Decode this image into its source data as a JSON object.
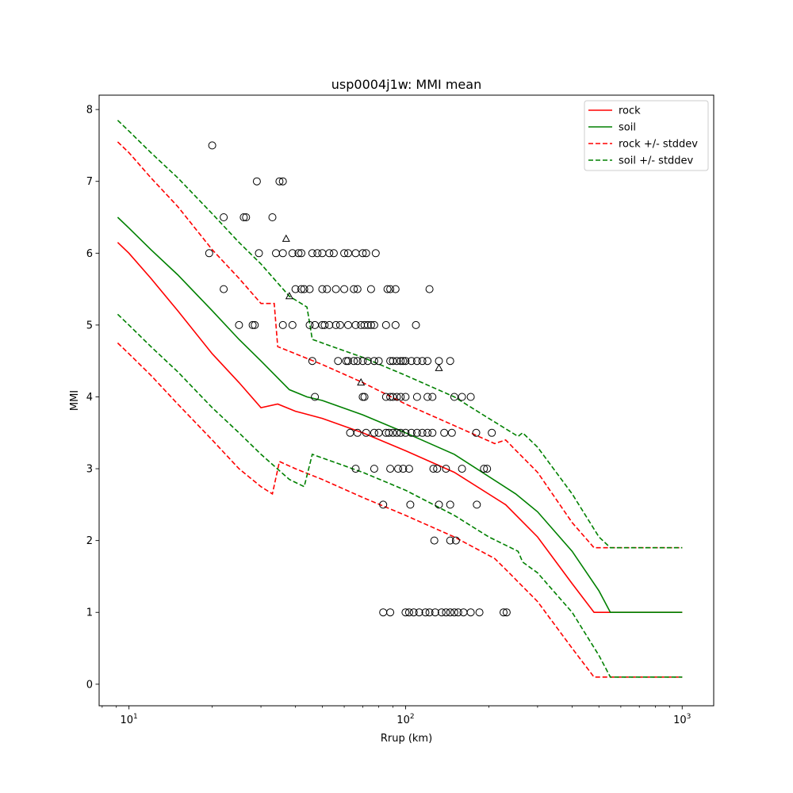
{
  "chart_data": {
    "type": "scatter",
    "title": "usp0004j1w: MMI mean",
    "xlabel": "Rrup (km)",
    "ylabel": "MMI",
    "xscale": "log",
    "xlim": [
      7.8,
      1300
    ],
    "ylim": [
      -0.3,
      8.2
    ],
    "xticks": [
      {
        "value": 10,
        "base": "10",
        "exp": "1"
      },
      {
        "value": 100,
        "base": "10",
        "exp": "2"
      },
      {
        "value": 1000,
        "base": "10",
        "exp": "3"
      }
    ],
    "yticks": [
      0,
      1,
      2,
      3,
      4,
      5,
      6,
      7,
      8
    ],
    "legend_position": "top-right",
    "colors": {
      "rock": "#ff0000",
      "soil": "#008000",
      "axis": "#000000"
    },
    "series": [
      {
        "name": "rock",
        "label": "rock",
        "color": "#ff0000",
        "dash": false,
        "legend": true,
        "x": [
          9.1,
          10,
          12,
          15,
          20,
          25,
          30,
          34.5,
          40,
          50,
          70,
          100,
          150,
          230,
          300,
          400,
          480,
          1000
        ],
        "y": [
          6.15,
          6.0,
          5.65,
          5.2,
          4.6,
          4.2,
          3.85,
          3.9,
          3.8,
          3.7,
          3.5,
          3.25,
          2.95,
          2.5,
          2.05,
          1.4,
          1.0,
          1.0
        ]
      },
      {
        "name": "soil",
        "label": "soil",
        "color": "#008000",
        "dash": false,
        "legend": true,
        "x": [
          9.1,
          10,
          12,
          15,
          20,
          25,
          30,
          38,
          44,
          50,
          70,
          100,
          150,
          250,
          300,
          400,
          500,
          550,
          1000
        ],
        "y": [
          6.5,
          6.35,
          6.05,
          5.7,
          5.2,
          4.8,
          4.5,
          4.1,
          4.0,
          3.95,
          3.75,
          3.5,
          3.2,
          2.65,
          2.4,
          1.85,
          1.3,
          1.0,
          1.0
        ]
      },
      {
        "name": "rock-plus",
        "label": "rock +/- stddev",
        "color": "#ff0000",
        "dash": true,
        "legend": true,
        "x": [
          9.1,
          10,
          12,
          15,
          20,
          25,
          30,
          33.5,
          34.5,
          40,
          50,
          70,
          100,
          150,
          210,
          230,
          300,
          400,
          480,
          1000
        ],
        "y": [
          7.55,
          7.4,
          7.05,
          6.65,
          6.05,
          5.65,
          5.3,
          5.3,
          4.7,
          4.6,
          4.45,
          4.2,
          3.9,
          3.6,
          3.35,
          3.4,
          2.95,
          2.25,
          1.9,
          1.9
        ]
      },
      {
        "name": "rock-minus",
        "label": "",
        "color": "#ff0000",
        "dash": true,
        "legend": false,
        "x": [
          9.1,
          10,
          12,
          15,
          20,
          25,
          30,
          33,
          35,
          40,
          50,
          70,
          100,
          150,
          210,
          230,
          300,
          400,
          480,
          1000
        ],
        "y": [
          4.75,
          4.6,
          4.3,
          3.9,
          3.4,
          3.0,
          2.75,
          2.65,
          3.1,
          3.0,
          2.85,
          2.6,
          2.35,
          2.05,
          1.75,
          1.6,
          1.15,
          0.5,
          0.1,
          0.1
        ]
      },
      {
        "name": "soil-plus",
        "label": "soil +/- stddev",
        "color": "#008000",
        "dash": true,
        "legend": true,
        "x": [
          9.1,
          10,
          12,
          15,
          20,
          25,
          30,
          38,
          44,
          46,
          50,
          70,
          100,
          150,
          200,
          255,
          265,
          300,
          400,
          500,
          550,
          1000
        ],
        "y": [
          7.85,
          7.7,
          7.4,
          7.05,
          6.55,
          6.15,
          5.85,
          5.4,
          5.25,
          4.8,
          4.75,
          4.55,
          4.3,
          4.0,
          3.7,
          3.45,
          3.5,
          3.3,
          2.65,
          2.05,
          1.9,
          1.9
        ]
      },
      {
        "name": "soil-minus",
        "label": "",
        "color": "#008000",
        "dash": true,
        "legend": false,
        "x": [
          9.1,
          10,
          12,
          15,
          20,
          25,
          30,
          38,
          43,
          46,
          50,
          70,
          100,
          150,
          200,
          255,
          265,
          300,
          400,
          500,
          550,
          1000
        ],
        "y": [
          5.15,
          5.0,
          4.7,
          4.35,
          3.85,
          3.5,
          3.2,
          2.85,
          2.75,
          3.2,
          3.15,
          2.95,
          2.7,
          2.35,
          2.05,
          1.85,
          1.7,
          1.55,
          1.0,
          0.4,
          0.1,
          0.1
        ]
      }
    ],
    "circles": [
      [
        20,
        7.5
      ],
      [
        29,
        7.0
      ],
      [
        36,
        7.0
      ],
      [
        35,
        7.0
      ],
      [
        22,
        6.5
      ],
      [
        26,
        6.5
      ],
      [
        26.5,
        6.5
      ],
      [
        33,
        6.5
      ],
      [
        19.5,
        6.0
      ],
      [
        29.5,
        6.0
      ],
      [
        34,
        6.0
      ],
      [
        36,
        6.0
      ],
      [
        39,
        6.0
      ],
      [
        41,
        6.0
      ],
      [
        42,
        6.0
      ],
      [
        46,
        6.0
      ],
      [
        48,
        6.0
      ],
      [
        50,
        6.0
      ],
      [
        53,
        6.0
      ],
      [
        55,
        6.0
      ],
      [
        60,
        6.0
      ],
      [
        62,
        6.0
      ],
      [
        66,
        6.0
      ],
      [
        70,
        6.0
      ],
      [
        72,
        6.0
      ],
      [
        78,
        6.0
      ],
      [
        22,
        5.5
      ],
      [
        40,
        5.5
      ],
      [
        42,
        5.5
      ],
      [
        43,
        5.5
      ],
      [
        45,
        5.5
      ],
      [
        50,
        5.5
      ],
      [
        52,
        5.5
      ],
      [
        56,
        5.5
      ],
      [
        60,
        5.5
      ],
      [
        65,
        5.5
      ],
      [
        67,
        5.5
      ],
      [
        75,
        5.5
      ],
      [
        86,
        5.5
      ],
      [
        88,
        5.5
      ],
      [
        92,
        5.5
      ],
      [
        122,
        5.5
      ],
      [
        25,
        5.0
      ],
      [
        28,
        5.0
      ],
      [
        28.5,
        5.0
      ],
      [
        36,
        5.0
      ],
      [
        39,
        5.0
      ],
      [
        45,
        5.0
      ],
      [
        47,
        5.0
      ],
      [
        50,
        5.0
      ],
      [
        51,
        5.0
      ],
      [
        53,
        5.0
      ],
      [
        56,
        5.0
      ],
      [
        58,
        5.0
      ],
      [
        62,
        5.0
      ],
      [
        66,
        5.0
      ],
      [
        69,
        5.0
      ],
      [
        71,
        5.0
      ],
      [
        73,
        5.0
      ],
      [
        75,
        5.0
      ],
      [
        77,
        5.0
      ],
      [
        85,
        5.0
      ],
      [
        92,
        5.0
      ],
      [
        109,
        5.0
      ],
      [
        46,
        4.5
      ],
      [
        57,
        4.5
      ],
      [
        61,
        4.5
      ],
      [
        62,
        4.5
      ],
      [
        65,
        4.5
      ],
      [
        67,
        4.5
      ],
      [
        70,
        4.5
      ],
      [
        73,
        4.5
      ],
      [
        77,
        4.5
      ],
      [
        80,
        4.5
      ],
      [
        88,
        4.5
      ],
      [
        90,
        4.5
      ],
      [
        93,
        4.5
      ],
      [
        96,
        4.5
      ],
      [
        98,
        4.5
      ],
      [
        100,
        4.5
      ],
      [
        105,
        4.5
      ],
      [
        110,
        4.5
      ],
      [
        115,
        4.5
      ],
      [
        120,
        4.5
      ],
      [
        132,
        4.5
      ],
      [
        145,
        4.5
      ],
      [
        47,
        4.0
      ],
      [
        70,
        4.0
      ],
      [
        71,
        4.0
      ],
      [
        85,
        4.0
      ],
      [
        88,
        4.0
      ],
      [
        90,
        4.0
      ],
      [
        93,
        4.0
      ],
      [
        96,
        4.0
      ],
      [
        100,
        4.0
      ],
      [
        110,
        4.0
      ],
      [
        120,
        4.0
      ],
      [
        125,
        4.0
      ],
      [
        150,
        4.0
      ],
      [
        160,
        4.0
      ],
      [
        172,
        4.0
      ],
      [
        63,
        3.5
      ],
      [
        67,
        3.5
      ],
      [
        72,
        3.5
      ],
      [
        77,
        3.5
      ],
      [
        80,
        3.5
      ],
      [
        85,
        3.5
      ],
      [
        87,
        3.5
      ],
      [
        90,
        3.5
      ],
      [
        93,
        3.5
      ],
      [
        96,
        3.5
      ],
      [
        100,
        3.5
      ],
      [
        105,
        3.5
      ],
      [
        110,
        3.5
      ],
      [
        115,
        3.5
      ],
      [
        120,
        3.5
      ],
      [
        125,
        3.5
      ],
      [
        138,
        3.5
      ],
      [
        147,
        3.5
      ],
      [
        180,
        3.5
      ],
      [
        205,
        3.5
      ],
      [
        66,
        3.0
      ],
      [
        77,
        3.0
      ],
      [
        88,
        3.0
      ],
      [
        94,
        3.0
      ],
      [
        98,
        3.0
      ],
      [
        103,
        3.0
      ],
      [
        126,
        3.0
      ],
      [
        130,
        3.0
      ],
      [
        140,
        3.0
      ],
      [
        160,
        3.0
      ],
      [
        192,
        3.0
      ],
      [
        197,
        3.0
      ],
      [
        83,
        2.5
      ],
      [
        104,
        2.5
      ],
      [
        132,
        2.5
      ],
      [
        145,
        2.5
      ],
      [
        181,
        2.5
      ],
      [
        127,
        2.0
      ],
      [
        145,
        2.0
      ],
      [
        152,
        2.0
      ],
      [
        83,
        1.0
      ],
      [
        88,
        1.0
      ],
      [
        100,
        1.0
      ],
      [
        103,
        1.0
      ],
      [
        107,
        1.0
      ],
      [
        112,
        1.0
      ],
      [
        118,
        1.0
      ],
      [
        122,
        1.0
      ],
      [
        128,
        1.0
      ],
      [
        135,
        1.0
      ],
      [
        140,
        1.0
      ],
      [
        145,
        1.0
      ],
      [
        150,
        1.0
      ],
      [
        155,
        1.0
      ],
      [
        162,
        1.0
      ],
      [
        172,
        1.0
      ],
      [
        185,
        1.0
      ],
      [
        226,
        1.0
      ],
      [
        232,
        1.0
      ]
    ],
    "triangles": [
      [
        37,
        6.2
      ],
      [
        38,
        5.4
      ],
      [
        69,
        4.2
      ],
      [
        132,
        4.4
      ]
    ]
  }
}
